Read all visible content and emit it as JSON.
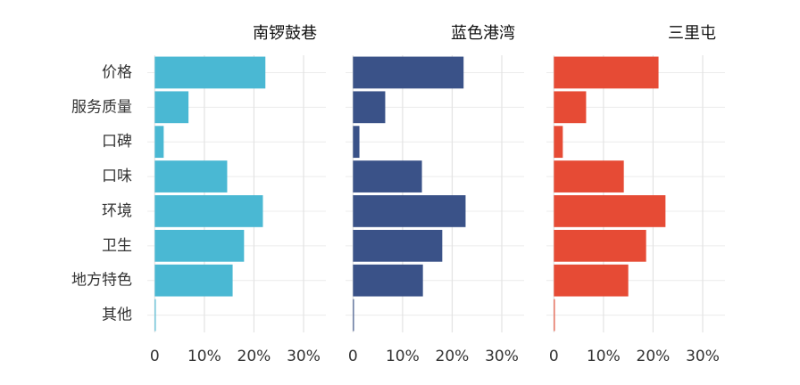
{
  "chart_data": {
    "type": "bar",
    "orientation": "horizontal",
    "categories": [
      "价格",
      "服务质量",
      "口碑",
      "口味",
      "环境",
      "卫生",
      "地方特色",
      "其他"
    ],
    "xlim": [
      -1.5,
      34.5
    ],
    "xticks": [
      0,
      {
        "value": 10,
        "label": "10%"
      },
      {
        "value": 20,
        "label": "20%"
      },
      {
        "value": 30,
        "label": "30%"
      }
    ],
    "grid": true,
    "series": [
      {
        "name": "南锣鼓巷",
        "color": "#4ab8d3",
        "values": [
          22.3,
          6.8,
          1.8,
          14.6,
          21.8,
          18.0,
          15.7,
          0.2
        ]
      },
      {
        "name": "蓝色港湾",
        "color": "#3a5288",
        "values": [
          22.3,
          6.5,
          1.3,
          13.9,
          22.7,
          18.0,
          14.1,
          0.2
        ]
      },
      {
        "name": "三里屯",
        "color": "#e64b35",
        "values": [
          21.1,
          6.5,
          1.8,
          14.1,
          22.5,
          18.6,
          15.0,
          0.2
        ]
      }
    ]
  }
}
